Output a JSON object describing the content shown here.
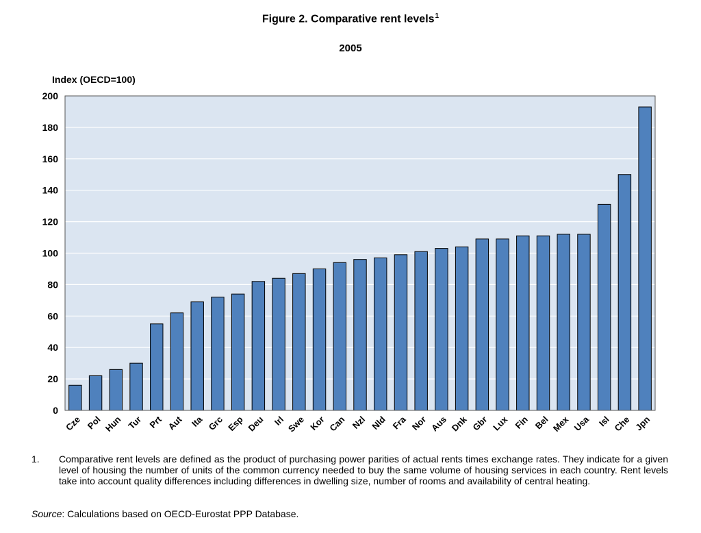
{
  "title": "Figure 2. Comparative rent levels",
  "title_footnote": "1",
  "subtitle": "2005",
  "chart_data": {
    "type": "bar",
    "ylabel": "Index (OECD=100)",
    "xlabel": "",
    "ylim": [
      0,
      200
    ],
    "yticks": [
      0,
      20,
      40,
      60,
      80,
      100,
      120,
      140,
      160,
      180,
      200
    ],
    "grid": true,
    "categories": [
      "Cze",
      "Pol",
      "Hun",
      "Tur",
      "Prt",
      "Aut",
      "Ita",
      "Grc",
      "Esp",
      "Deu",
      "Irl",
      "Swe",
      "Kor",
      "Can",
      "Nzl",
      "Nld",
      "Fra",
      "Nor",
      "Aus",
      "Dnk",
      "Gbr",
      "Lux",
      "Fin",
      "Bel",
      "Mex",
      "Usa",
      "Isl",
      "Che",
      "Jpn"
    ],
    "values": [
      16,
      22,
      26,
      30,
      55,
      62,
      69,
      72,
      74,
      82,
      84,
      87,
      90,
      94,
      96,
      97,
      99,
      101,
      103,
      104,
      109,
      109,
      111,
      111,
      112,
      112,
      131,
      150,
      193
    ],
    "colors": {
      "bar": "#4f81bd",
      "bar_edge": "#000000",
      "plot_bg": "#dbe5f1",
      "grid": "#ffffff"
    }
  },
  "footnote": {
    "number": "1.",
    "text": "Comparative rent levels are defined as the product of purchasing power parities of actual rents times exchange rates. They indicate for a given level of housing the number of units of the common currency needed to buy the same volume of housing services in each country. Rent levels take into account quality differences including differences in dwelling size, number of rooms and availability of central heating."
  },
  "source": {
    "label": "Source",
    "text": ": Calculations based on OECD-Eurostat PPP Database."
  }
}
